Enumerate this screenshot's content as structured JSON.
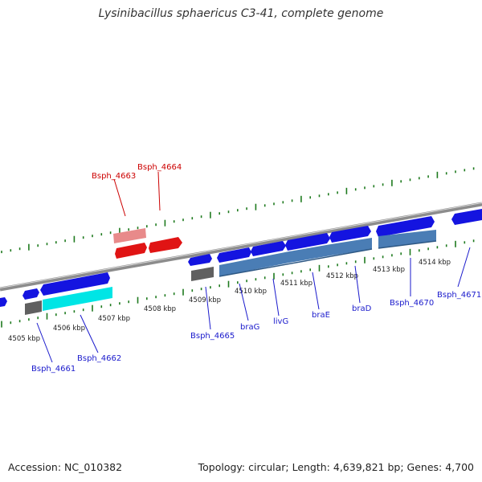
{
  "header": {
    "title": "Lysinibacillus sphaericus C3-41, complete genome"
  },
  "footer": {
    "accession": "Accession: NC_010382",
    "summary": "Topology: circular; Length: 4,639,821 bp; Genes: 4,700"
  },
  "scale_labels": [
    "4505 kbp",
    "4506 kbp",
    "4507 kbp",
    "4508 kbp",
    "4509 kbp",
    "4510 kbp",
    "4511 kbp",
    "4512 kbp",
    "4513 kbp",
    "4514 kbp"
  ],
  "gene_labels": {
    "Bsph_4661": "Bsph_4661",
    "Bsph_4662": "Bsph_4662",
    "Bsph_4663": "Bsph_4663",
    "Bsph_4664": "Bsph_4664",
    "Bsph_4665": "Bsph_4665",
    "braG": "braG",
    "livG": "livG",
    "braE": "braE",
    "braD": "braD",
    "Bsph_4670": "Bsph_4670",
    "Bsph_4671": "Bsph_4671"
  },
  "colors": {
    "backbone": "#8c8c8c",
    "tick": "#1e7a1e",
    "forward_gene": "#1414e0",
    "reverse_gene": "#e01414",
    "reverse_gene_light": "#e88a8a",
    "abc_transporter": "#4a7db5",
    "highlight": "#00e5e5",
    "other": "#606060"
  }
}
